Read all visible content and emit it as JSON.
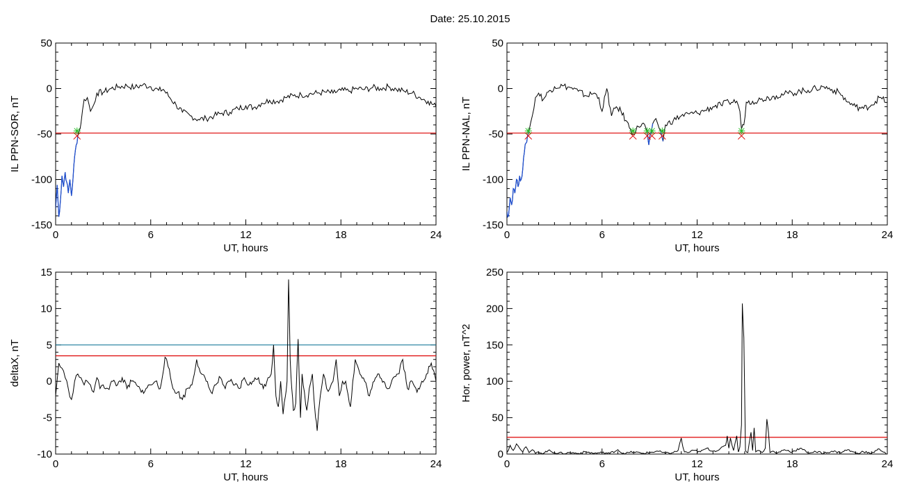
{
  "title": "Date:  25.10.2015",
  "colors": {
    "axis": "#000000",
    "trace": "#000000",
    "threshold": "#dd0000",
    "threshold2": "#1a7a9a",
    "dip_trace": "#1f4fd0",
    "cross_marker": "#dd0000",
    "star_marker": "#22bb22"
  },
  "chart_data": [
    {
      "id": "sor",
      "type": "line",
      "xlabel": "UT, hours",
      "ylabel": "IL PPN-SOR, nT",
      "xlim": [
        0,
        24
      ],
      "ylim": [
        -150,
        50
      ],
      "xticks": [
        0,
        6,
        12,
        18,
        24
      ],
      "yticks": [
        -150,
        -100,
        -50,
        0,
        50
      ],
      "threshold": -49,
      "x": [
        0,
        0.1,
        0.2,
        0.3,
        0.4,
        0.5,
        0.6,
        0.7,
        0.8,
        0.9,
        1.0,
        1.1,
        1.2,
        1.3,
        1.4,
        1.5,
        1.6,
        1.8,
        2.0,
        2.2,
        2.4,
        2.6,
        3.0,
        3.5,
        4.0,
        4.5,
        5.0,
        5.5,
        6.0,
        6.5,
        6.8,
        7.2,
        7.6,
        8.0,
        8.5,
        9.0,
        9.5,
        10.0,
        10.5,
        11.0,
        11.5,
        12.0,
        12.5,
        13.0,
        13.5,
        14.0,
        14.5,
        15.0,
        15.5,
        16.0,
        16.5,
        17.0,
        17.5,
        18.0,
        18.5,
        19.0,
        19.5,
        20.0,
        20.5,
        21.0,
        21.5,
        22.0,
        22.5,
        23.0,
        23.5,
        24.0
      ],
      "values": [
        -132,
        -106,
        -141,
        -124,
        -96,
        -108,
        -92,
        -103,
        -115,
        -100,
        -118,
        -98,
        -75,
        -62,
        -52,
        -46,
        -38,
        -12,
        -10,
        -25,
        -18,
        -5,
        -4,
        0,
        2,
        3,
        1,
        4,
        2,
        -2,
        -1,
        -10,
        -18,
        -26,
        -30,
        -34,
        -33,
        -30,
        -27,
        -26,
        -22,
        -19,
        -21,
        -16,
        -13,
        -14,
        -10,
        -8,
        -7,
        -6,
        -5,
        -4,
        -5,
        -2,
        -3,
        0,
        -1,
        1,
        0,
        2,
        -1,
        -3,
        -5,
        -10,
        -14,
        -20
      ],
      "crossings": [
        1.35
      ],
      "dip_start": 0,
      "dip_end": 1.35
    },
    {
      "id": "nal",
      "type": "line",
      "xlabel": "UT, hours",
      "ylabel": "IL PPN-NAL, nT",
      "xlim": [
        0,
        24
      ],
      "ylim": [
        -150,
        50
      ],
      "xticks": [
        0,
        6,
        12,
        18,
        24
      ],
      "yticks": [
        -150,
        -100,
        -50,
        0,
        50
      ],
      "threshold": -49,
      "x": [
        0,
        0.1,
        0.2,
        0.3,
        0.4,
        0.5,
        0.6,
        0.7,
        0.8,
        0.9,
        1.0,
        1.1,
        1.2,
        1.3,
        1.4,
        1.6,
        1.8,
        2.0,
        2.3,
        2.6,
        3.0,
        3.5,
        4.0,
        4.5,
        5.0,
        5.5,
        5.8,
        6.0,
        6.3,
        6.6,
        6.9,
        7.2,
        7.5,
        7.8,
        7.95,
        8.3,
        8.6,
        8.85,
        8.95,
        9.1,
        9.3,
        9.5,
        9.7,
        9.85,
        10.0,
        10.5,
        11.0,
        11.5,
        12.0,
        12.5,
        13.0,
        13.5,
        14.0,
        14.5,
        14.7,
        14.8,
        14.95,
        15.1,
        15.5,
        16.0,
        16.5,
        17.0,
        17.5,
        18.0,
        18.5,
        19.0,
        19.5,
        20.0,
        20.5,
        21.0,
        21.5,
        22.0,
        22.5,
        23.0,
        23.5,
        24.0
      ],
      "values": [
        -135,
        -140,
        -120,
        -128,
        -110,
        -115,
        -100,
        -108,
        -96,
        -100,
        -88,
        -70,
        -60,
        -52,
        -46,
        -30,
        -10,
        -5,
        -12,
        -4,
        2,
        3,
        1,
        -3,
        -8,
        -5,
        -10,
        -25,
        0,
        -30,
        -20,
        -25,
        -35,
        -45,
        -50,
        -42,
        -38,
        -48,
        -62,
        -48,
        -35,
        -38,
        -47,
        -58,
        -40,
        -35,
        -30,
        -28,
        -27,
        -24,
        -20,
        -18,
        -15,
        -14,
        -25,
        -45,
        -40,
        -15,
        -14,
        -12,
        -10,
        -8,
        -6,
        -5,
        -3,
        -2,
        0,
        2,
        -1,
        -5,
        -15,
        -20,
        -22,
        -18,
        -10,
        -15
      ],
      "crossings": [
        1.35,
        7.95,
        8.85,
        9.15,
        9.8,
        14.8
      ],
      "dips": [
        [
          0,
          1.35
        ],
        [
          8.85,
          9.15
        ],
        [
          9.7,
          9.85
        ]
      ]
    },
    {
      "id": "deltax",
      "type": "line",
      "xlabel": "UT, hours",
      "ylabel": "deltaX, nT",
      "xlim": [
        0,
        24
      ],
      "ylim": [
        -10,
        15
      ],
      "xticks": [
        0,
        6,
        12,
        18,
        24
      ],
      "yticks": [
        -10,
        -5,
        0,
        5,
        10,
        15
      ],
      "threshold": 3.5,
      "threshold2": 5.0,
      "x": [
        0,
        0.2,
        0.4,
        0.6,
        0.8,
        1.0,
        1.2,
        1.4,
        1.6,
        1.8,
        2.0,
        2.2,
        2.4,
        2.6,
        2.8,
        3.0,
        3.3,
        3.6,
        3.9,
        4.2,
        4.5,
        4.8,
        5.1,
        5.4,
        5.7,
        6.0,
        6.3,
        6.6,
        6.9,
        7.1,
        7.4,
        7.7,
        8.0,
        8.3,
        8.6,
        8.9,
        9.2,
        9.5,
        9.8,
        10.1,
        10.4,
        10.7,
        11.0,
        11.3,
        11.6,
        11.9,
        12.2,
        12.5,
        12.8,
        13.1,
        13.4,
        13.6,
        13.75,
        13.9,
        14.05,
        14.2,
        14.35,
        14.5,
        14.6,
        14.7,
        14.8,
        14.9,
        15.0,
        15.15,
        15.3,
        15.45,
        15.55,
        15.7,
        15.85,
        16.0,
        16.2,
        16.4,
        16.5,
        16.7,
        16.9,
        17.1,
        17.3,
        17.5,
        17.7,
        17.9,
        18.1,
        18.3,
        18.6,
        18.9,
        19.2,
        19.5,
        19.8,
        20.1,
        20.4,
        20.7,
        21.0,
        21.3,
        21.6,
        21.9,
        22.2,
        22.5,
        22.8,
        23.1,
        23.4,
        23.7,
        24.0
      ],
      "values": [
        -2,
        2.5,
        1.8,
        0.5,
        -1,
        -2.5,
        0,
        1,
        0.5,
        -0.5,
        0,
        -0.5,
        -1.5,
        0.5,
        -1,
        -0.5,
        -1,
        0,
        -0.5,
        0.5,
        -1,
        0,
        -0.5,
        -1.5,
        -1,
        -0.5,
        0,
        -1,
        3.3,
        2,
        -1,
        -1.5,
        -2.5,
        -1,
        -0.5,
        3,
        1,
        0,
        -1.5,
        -0.5,
        0.5,
        -1,
        0,
        -0.5,
        -1,
        0.5,
        -0.5,
        0,
        0.5,
        -1,
        0.5,
        1,
        5,
        -2,
        -3.5,
        0,
        -4.5,
        -2,
        0,
        14,
        3,
        -1,
        -4,
        -3,
        5.8,
        -5,
        1,
        -1.5,
        -4,
        -1,
        1,
        -5,
        -6.8,
        -2,
        1,
        -1,
        -1,
        0,
        3,
        -2,
        0,
        0,
        -3.5,
        3,
        1,
        0,
        -2,
        0,
        1,
        0,
        -1,
        0.5,
        1,
        3,
        -1,
        0,
        -1.5,
        0,
        1,
        2.5,
        0
      ],
      "crossings": []
    },
    {
      "id": "power",
      "type": "line",
      "xlabel": "UT, hours",
      "ylabel": "Hor. power, nT^2",
      "xlim": [
        0,
        24
      ],
      "ylim": [
        0,
        250
      ],
      "xticks": [
        0,
        6,
        12,
        18,
        24
      ],
      "yticks": [
        0,
        50,
        100,
        150,
        200,
        250
      ],
      "threshold": 23,
      "x": [
        0,
        0.2,
        0.4,
        0.6,
        0.8,
        1.0,
        1.2,
        1.4,
        1.6,
        1.8,
        2.0,
        2.3,
        2.6,
        3.0,
        3.5,
        4.0,
        4.5,
        5.0,
        5.5,
        6.0,
        6.5,
        7.0,
        7.2,
        7.5,
        8.0,
        8.5,
        9.0,
        9.5,
        10.0,
        10.5,
        10.8,
        11.0,
        11.1,
        11.2,
        11.4,
        11.8,
        12.2,
        12.6,
        13.0,
        13.4,
        13.8,
        13.9,
        14.0,
        14.1,
        14.3,
        14.5,
        14.6,
        14.7,
        14.8,
        14.85,
        14.95,
        15.05,
        15.2,
        15.4,
        15.5,
        15.6,
        15.7,
        15.9,
        16.1,
        16.3,
        16.4,
        16.5,
        16.6,
        16.8,
        17.0,
        17.5,
        18.0,
        18.5,
        19.0,
        19.5,
        20.0,
        20.5,
        21.0,
        21.5,
        22.0,
        22.5,
        23.0,
        23.5,
        24.0
      ],
      "values": [
        2,
        12,
        5,
        14,
        8,
        3,
        10,
        2,
        6,
        1,
        3,
        1,
        5,
        2,
        1,
        2,
        1,
        3,
        1,
        2,
        1,
        6,
        2,
        1,
        3,
        1,
        2,
        4,
        1,
        2,
        5,
        22,
        10,
        3,
        2,
        5,
        3,
        8,
        4,
        6,
        12,
        25,
        8,
        22,
        5,
        25,
        3,
        10,
        40,
        207,
        160,
        5,
        2,
        30,
        5,
        36,
        3,
        5,
        2,
        8,
        48,
        30,
        2,
        4,
        1,
        6,
        3,
        8,
        2,
        3,
        1,
        4,
        2,
        6,
        1,
        3,
        1,
        7,
        0
      ],
      "crossings": []
    }
  ]
}
